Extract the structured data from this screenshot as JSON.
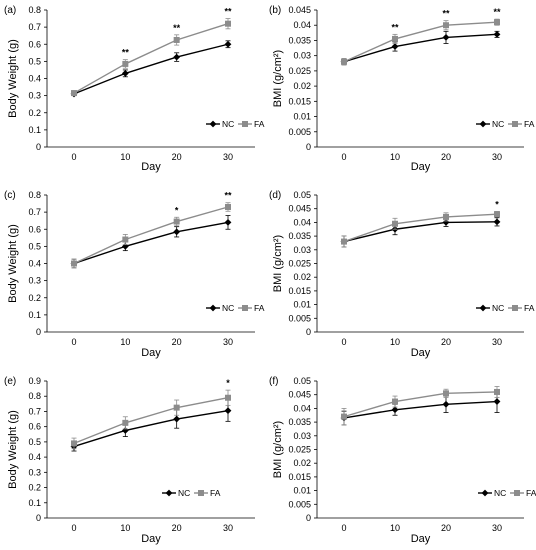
{
  "chart_data": [
    {
      "type": "line",
      "panel_label": "(a)",
      "xlabel": "Day",
      "ylabel": "Body Weight (g)",
      "x": [
        0,
        10,
        20,
        30
      ],
      "xticks": [
        "0",
        "10",
        "20",
        "30"
      ],
      "ylim": [
        0,
        0.8
      ],
      "yticks": [
        "0",
        "0.1",
        "0.2",
        "0.3",
        "0.4",
        "0.5",
        "0.6",
        "0.7",
        "0.8"
      ],
      "series": [
        {
          "name": "NC",
          "color": "#000000",
          "marker": "diamond",
          "values": [
            0.31,
            0.43,
            0.525,
            0.6
          ],
          "errors": [
            0.01,
            0.02,
            0.025,
            0.02
          ]
        },
        {
          "name": "FA",
          "color": "#8c8c8c",
          "marker": "square",
          "values": [
            0.315,
            0.485,
            0.625,
            0.72
          ],
          "errors": [
            0.01,
            0.025,
            0.03,
            0.03
          ]
        }
      ],
      "significance": [
        "",
        "**",
        "**",
        "**"
      ],
      "legend": "right"
    },
    {
      "type": "line",
      "panel_label": "(b)",
      "xlabel": "Day",
      "ylabel": "BMI (g/cm²)",
      "x": [
        0,
        10,
        20,
        30
      ],
      "xticks": [
        "0",
        "10",
        "20",
        "30"
      ],
      "ylim": [
        0,
        0.045
      ],
      "yticks": [
        "0",
        "0.005",
        "0.01",
        "0.015",
        "0.02",
        "0.025",
        "0.03",
        "0.035",
        "0.04",
        "0.045"
      ],
      "series": [
        {
          "name": "NC",
          "color": "#000000",
          "marker": "diamond",
          "values": [
            0.028,
            0.033,
            0.036,
            0.037
          ],
          "errors": [
            0.001,
            0.0015,
            0.002,
            0.001
          ]
        },
        {
          "name": "FA",
          "color": "#8c8c8c",
          "marker": "square",
          "values": [
            0.028,
            0.0355,
            0.04,
            0.041
          ],
          "errors": [
            0.001,
            0.0015,
            0.0015,
            0.001
          ]
        }
      ],
      "significance": [
        "",
        "**",
        "**",
        "**"
      ],
      "legend": "right"
    },
    {
      "type": "line",
      "panel_label": "(c)",
      "xlabel": "Day",
      "ylabel": "Body Weight (g)",
      "x": [
        0,
        10,
        20,
        30
      ],
      "xticks": [
        "0",
        "10",
        "20",
        "30"
      ],
      "ylim": [
        0,
        0.8
      ],
      "yticks": [
        "0",
        "0.1",
        "0.2",
        "0.3",
        "0.4",
        "0.5",
        "0.6",
        "0.7",
        "0.8"
      ],
      "series": [
        {
          "name": "NC",
          "color": "#000000",
          "marker": "diamond",
          "values": [
            0.4,
            0.5,
            0.585,
            0.64
          ],
          "errors": [
            0.025,
            0.025,
            0.03,
            0.04
          ]
        },
        {
          "name": "FA",
          "color": "#8c8c8c",
          "marker": "square",
          "values": [
            0.4,
            0.54,
            0.645,
            0.73
          ],
          "errors": [
            0.025,
            0.03,
            0.025,
            0.025
          ]
        }
      ],
      "significance": [
        "",
        "",
        "*",
        "**"
      ],
      "legend": "right"
    },
    {
      "type": "line",
      "panel_label": "(d)",
      "xlabel": "Day",
      "ylabel": "BMI (g/cm²)",
      "x": [
        0,
        10,
        20,
        30
      ],
      "xticks": [
        "0",
        "10",
        "20",
        "30"
      ],
      "ylim": [
        0,
        0.05
      ],
      "yticks": [
        "0",
        "0.005",
        "0.01",
        "0.015",
        "0.02",
        "0.025",
        "0.03",
        "0.035",
        "0.04",
        "0.045",
        "0.05"
      ],
      "series": [
        {
          "name": "NC",
          "color": "#000000",
          "marker": "diamond",
          "values": [
            0.033,
            0.0375,
            0.04,
            0.0402
          ],
          "errors": [
            0.002,
            0.002,
            0.0015,
            0.0015
          ]
        },
        {
          "name": "FA",
          "color": "#8c8c8c",
          "marker": "square",
          "values": [
            0.033,
            0.0395,
            0.042,
            0.043
          ],
          "errors": [
            0.002,
            0.002,
            0.0015,
            0.001
          ]
        }
      ],
      "significance": [
        "",
        "",
        "",
        "*"
      ],
      "legend": "right"
    },
    {
      "type": "line",
      "panel_label": "(e)",
      "xlabel": "Day",
      "ylabel": "Body Weight (g)",
      "x": [
        0,
        10,
        20,
        30
      ],
      "xticks": [
        "0",
        "10",
        "20",
        "30"
      ],
      "ylim": [
        0,
        0.9
      ],
      "yticks": [
        "0",
        "0.1",
        "0.2",
        "0.3",
        "0.4",
        "0.5",
        "0.6",
        "0.7",
        "0.8",
        "0.9"
      ],
      "series": [
        {
          "name": "NC",
          "color": "#000000",
          "marker": "diamond",
          "values": [
            0.47,
            0.575,
            0.65,
            0.705
          ],
          "errors": [
            0.03,
            0.04,
            0.06,
            0.07
          ]
        },
        {
          "name": "FA",
          "color": "#8c8c8c",
          "marker": "square",
          "values": [
            0.49,
            0.625,
            0.725,
            0.79
          ],
          "errors": [
            0.035,
            0.04,
            0.05,
            0.05
          ]
        }
      ],
      "significance": [
        "",
        "",
        "",
        "*"
      ],
      "legend": "center"
    },
    {
      "type": "line",
      "panel_label": "(f)",
      "xlabel": "Day",
      "ylabel": "BMI (g/cm²)",
      "x": [
        0,
        10,
        20,
        30
      ],
      "xticks": [
        "0",
        "10",
        "20",
        "30"
      ],
      "ylim": [
        0,
        0.05
      ],
      "yticks": [
        "0",
        "0.005",
        "0.01",
        "0.015",
        "0.02",
        "0.025",
        "0.03",
        "0.035",
        "0.04",
        "0.045",
        "0.05"
      ],
      "series": [
        {
          "name": "NC",
          "color": "#000000",
          "marker": "diamond",
          "values": [
            0.0365,
            0.0395,
            0.0415,
            0.0425
          ],
          "errors": [
            0.0025,
            0.002,
            0.003,
            0.004
          ]
        },
        {
          "name": "FA",
          "color": "#8c8c8c",
          "marker": "square",
          "values": [
            0.037,
            0.0425,
            0.0455,
            0.046
          ],
          "errors": [
            0.003,
            0.002,
            0.0015,
            0.002
          ]
        }
      ],
      "significance": [
        "",
        "",
        "",
        ""
      ],
      "legend": "center"
    }
  ]
}
